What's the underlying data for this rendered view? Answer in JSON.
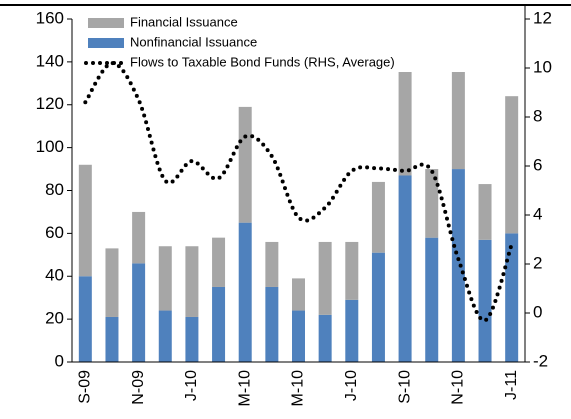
{
  "chart_data": {
    "type": "bar",
    "categories": [
      "S-09",
      null,
      "N-09",
      null,
      "J-10",
      null,
      "M-10",
      null,
      "M-10",
      null,
      "J-10",
      null,
      "S-10",
      null,
      "N-10",
      null,
      "J-11"
    ],
    "series": [
      {
        "name": "Nonfinancial Issuance",
        "color": "#4f81bd",
        "values": [
          40,
          21,
          46,
          24,
          21,
          35,
          65,
          35,
          24,
          22,
          29,
          51,
          87,
          58,
          90,
          57,
          60
        ]
      },
      {
        "name": "Financial Issuance",
        "color": "#a6a6a6",
        "values": [
          52,
          32,
          24,
          30,
          33,
          23,
          54,
          21,
          15,
          34,
          27,
          33,
          52,
          32,
          60,
          26,
          64
        ]
      },
      {
        "name": "Flows to Taxable Bond Funds (RHS, Average)",
        "type": "line",
        "axis": "y2",
        "color": "#000000",
        "values": [
          8.6,
          10.2,
          8.7,
          5.4,
          6.2,
          5.5,
          7.2,
          6.4,
          3.9,
          4.3,
          5.8,
          5.9,
          5.8,
          5.8,
          2.2,
          -0.3,
          2.8
        ]
      }
    ],
    "stacked": true,
    "ylim": [
      0,
      160
    ],
    "yticks": [
      0,
      20,
      40,
      60,
      80,
      100,
      120,
      140,
      160
    ],
    "y2lim": [
      -2,
      12
    ],
    "y2ticks": [
      -2,
      0,
      2,
      4,
      6,
      8,
      10,
      12
    ]
  }
}
